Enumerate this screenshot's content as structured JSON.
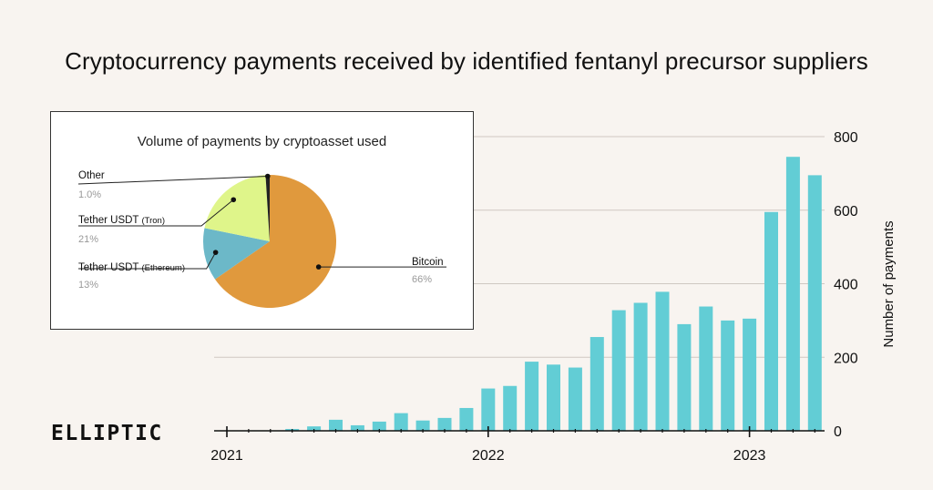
{
  "title": "Cryptocurrency payments received by identified fentanyl precursor suppliers",
  "brand": "ELLIPTIC",
  "chart_data": [
    {
      "type": "bar",
      "title": "Cryptocurrency payments received by identified fentanyl precursor suppliers",
      "ylabel": "Number of payments",
      "ylim": [
        0,
        800
      ],
      "yticks": [
        0,
        200,
        400,
        600,
        800
      ],
      "xtick_labels": [
        "2021",
        "2022",
        "2023"
      ],
      "x": [
        "2021-01",
        "2021-02",
        "2021-03",
        "2021-04",
        "2021-05",
        "2021-06",
        "2021-07",
        "2021-08",
        "2021-09",
        "2021-10",
        "2021-11",
        "2021-12",
        "2022-01",
        "2022-02",
        "2022-03",
        "2022-04",
        "2022-05",
        "2022-06",
        "2022-07",
        "2022-08",
        "2022-09",
        "2022-10",
        "2022-11",
        "2022-12",
        "2023-01",
        "2023-02",
        "2023-03",
        "2023-04"
      ],
      "values": [
        0,
        0,
        0,
        5,
        12,
        30,
        15,
        25,
        48,
        28,
        35,
        62,
        115,
        122,
        188,
        180,
        172,
        255,
        328,
        348,
        378,
        290,
        338,
        300,
        305,
        595,
        745,
        695
      ],
      "grid": "horizontal",
      "color": "#62cdd5"
    },
    {
      "type": "pie",
      "title": "Volume of payments by cryptoasset used",
      "slices": [
        {
          "label": "Bitcoin",
          "sub": "",
          "value": 66,
          "pct": "66%",
          "color": "#e0993d"
        },
        {
          "label": "Tether USDT",
          "sub": "(Ethereum)",
          "value": 13,
          "pct": "13%",
          "color": "#6cb8c8"
        },
        {
          "label": "Tether USDT",
          "sub": "(Tron)",
          "value": 21,
          "pct": "21%",
          "color": "#dff58a"
        },
        {
          "label": "Other",
          "sub": "",
          "value": 1.0,
          "pct": "1.0%",
          "color": "#222222"
        }
      ]
    }
  ]
}
